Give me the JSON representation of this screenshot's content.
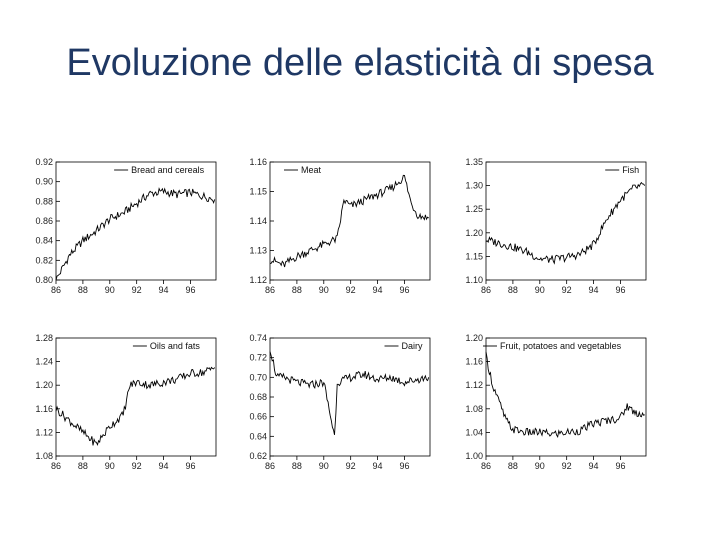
{
  "slide": {
    "title": "Evoluzione delle elasticità di spesa"
  },
  "chart_data": [
    {
      "type": "line",
      "series": [
        {
          "name": "Bread and cereals",
          "color": "#000000"
        }
      ],
      "x_ticks": [
        "86",
        "88",
        "90",
        "92",
        "94",
        "96"
      ],
      "y_ticks": [
        "0.80",
        "0.82",
        "0.84",
        "0.86",
        "0.88",
        "0.90",
        "0.92"
      ],
      "ylim": [
        0.8,
        0.92
      ],
      "xlim": [
        1986,
        1997.9
      ],
      "legend": "top-right",
      "grid": false,
      "points": [
        [
          1986.0,
          0.8
        ],
        [
          1987.0,
          0.825
        ],
        [
          1988.0,
          0.84
        ],
        [
          1989.0,
          0.85
        ],
        [
          1990.0,
          0.862
        ],
        [
          1991.0,
          0.868
        ],
        [
          1992.0,
          0.878
        ],
        [
          1993.0,
          0.888
        ],
        [
          1994.0,
          0.89
        ],
        [
          1995.0,
          0.887
        ],
        [
          1996.0,
          0.889
        ],
        [
          1997.0,
          0.885
        ],
        [
          1997.8,
          0.882
        ]
      ]
    },
    {
      "type": "line",
      "series": [
        {
          "name": "Meat",
          "color": "#000000"
        }
      ],
      "x_ticks": [
        "86",
        "88",
        "90",
        "92",
        "94",
        "96"
      ],
      "y_ticks": [
        "1.12",
        "1.13",
        "1.14",
        "1.15",
        "1.16"
      ],
      "ylim": [
        1.12,
        1.16
      ],
      "xlim": [
        1986,
        1997.9
      ],
      "legend": "top-left",
      "grid": false,
      "points": [
        [
          1986.0,
          1.127
        ],
        [
          1987.0,
          1.125
        ],
        [
          1988.0,
          1.128
        ],
        [
          1989.0,
          1.13
        ],
        [
          1990.0,
          1.132
        ],
        [
          1991.0,
          1.134
        ],
        [
          1991.5,
          1.147
        ],
        [
          1992.0,
          1.145
        ],
        [
          1993.0,
          1.147
        ],
        [
          1994.0,
          1.149
        ],
        [
          1995.0,
          1.151
        ],
        [
          1996.0,
          1.155
        ],
        [
          1996.5,
          1.146
        ],
        [
          1997.0,
          1.142
        ],
        [
          1997.8,
          1.141
        ]
      ]
    },
    {
      "type": "line",
      "series": [
        {
          "name": "Fish",
          "color": "#000000"
        }
      ],
      "x_ticks": [
        "86",
        "88",
        "90",
        "92",
        "94",
        "96"
      ],
      "y_ticks": [
        "1.10",
        "1.15",
        "1.20",
        "1.25",
        "1.30",
        "1.35"
      ],
      "ylim": [
        1.1,
        1.35
      ],
      "xlim": [
        1986,
        1997.9
      ],
      "legend": "top-right",
      "grid": false,
      "points": [
        [
          1986.0,
          1.185
        ],
        [
          1987.0,
          1.178
        ],
        [
          1988.0,
          1.17
        ],
        [
          1989.0,
          1.16
        ],
        [
          1990.0,
          1.145
        ],
        [
          1991.0,
          1.143
        ],
        [
          1992.0,
          1.148
        ],
        [
          1993.0,
          1.155
        ],
        [
          1994.0,
          1.175
        ],
        [
          1995.0,
          1.23
        ],
        [
          1996.0,
          1.27
        ],
        [
          1997.0,
          1.295
        ],
        [
          1997.8,
          1.3
        ]
      ]
    },
    {
      "type": "line",
      "series": [
        {
          "name": "Oils and fats",
          "color": "#000000"
        }
      ],
      "x_ticks": [
        "86",
        "88",
        "90",
        "92",
        "94",
        "96"
      ],
      "y_ticks": [
        "1.08",
        "1.12",
        "1.16",
        "1.20",
        "1.24",
        "1.28"
      ],
      "ylim": [
        1.08,
        1.28
      ],
      "xlim": [
        1986,
        1997.9
      ],
      "legend": "top-right",
      "grid": false,
      "points": [
        [
          1986.0,
          1.16
        ],
        [
          1987.0,
          1.14
        ],
        [
          1988.0,
          1.12
        ],
        [
          1989.0,
          1.1
        ],
        [
          1990.0,
          1.13
        ],
        [
          1991.0,
          1.15
        ],
        [
          1991.5,
          1.2
        ],
        [
          1992.0,
          1.205
        ],
        [
          1993.0,
          1.2
        ],
        [
          1994.0,
          1.205
        ],
        [
          1995.0,
          1.21
        ],
        [
          1996.0,
          1.22
        ],
        [
          1997.0,
          1.222
        ],
        [
          1997.8,
          1.23
        ]
      ]
    },
    {
      "type": "line",
      "series": [
        {
          "name": "Dairy",
          "color": "#000000"
        }
      ],
      "x_ticks": [
        "86",
        "88",
        "90",
        "92",
        "94",
        "96"
      ],
      "y_ticks": [
        "0.62",
        "0.64",
        "0.66",
        "0.68",
        "0.70",
        "0.72",
        "0.74"
      ],
      "ylim": [
        0.62,
        0.74
      ],
      "xlim": [
        1986,
        1997.9
      ],
      "legend": "top-right",
      "grid": false,
      "points": [
        [
          1986.0,
          0.73
        ],
        [
          1986.5,
          0.7
        ],
        [
          1987.0,
          0.7
        ],
        [
          1988.0,
          0.695
        ],
        [
          1989.0,
          0.692
        ],
        [
          1990.0,
          0.695
        ],
        [
          1990.8,
          0.64
        ],
        [
          1991.0,
          0.695
        ],
        [
          1992.0,
          0.7
        ],
        [
          1993.0,
          0.703
        ],
        [
          1994.0,
          0.698
        ],
        [
          1995.0,
          0.7
        ],
        [
          1996.0,
          0.695
        ],
        [
          1997.0,
          0.698
        ],
        [
          1997.8,
          0.7
        ]
      ]
    },
    {
      "type": "line",
      "series": [
        {
          "name": "Fruit, potatoes and vegetables",
          "color": "#000000"
        }
      ],
      "x_ticks": [
        "86",
        "88",
        "90",
        "92",
        "94",
        "96"
      ],
      "y_ticks": [
        "1.00",
        "1.04",
        "1.08",
        "1.12",
        "1.16",
        "1.20"
      ],
      "ylim": [
        1.0,
        1.2
      ],
      "xlim": [
        1986,
        1997.9
      ],
      "legend": "top-right",
      "grid": false,
      "points": [
        [
          1986.0,
          1.17
        ],
        [
          1986.5,
          1.12
        ],
        [
          1987.0,
          1.09
        ],
        [
          1987.5,
          1.06
        ],
        [
          1988.0,
          1.045
        ],
        [
          1989.0,
          1.04
        ],
        [
          1990.0,
          1.04
        ],
        [
          1991.0,
          1.037
        ],
        [
          1992.0,
          1.04
        ],
        [
          1993.0,
          1.043
        ],
        [
          1994.0,
          1.055
        ],
        [
          1995.0,
          1.06
        ],
        [
          1996.0,
          1.065
        ],
        [
          1996.5,
          1.085
        ],
        [
          1997.0,
          1.075
        ],
        [
          1997.8,
          1.07
        ]
      ]
    }
  ]
}
